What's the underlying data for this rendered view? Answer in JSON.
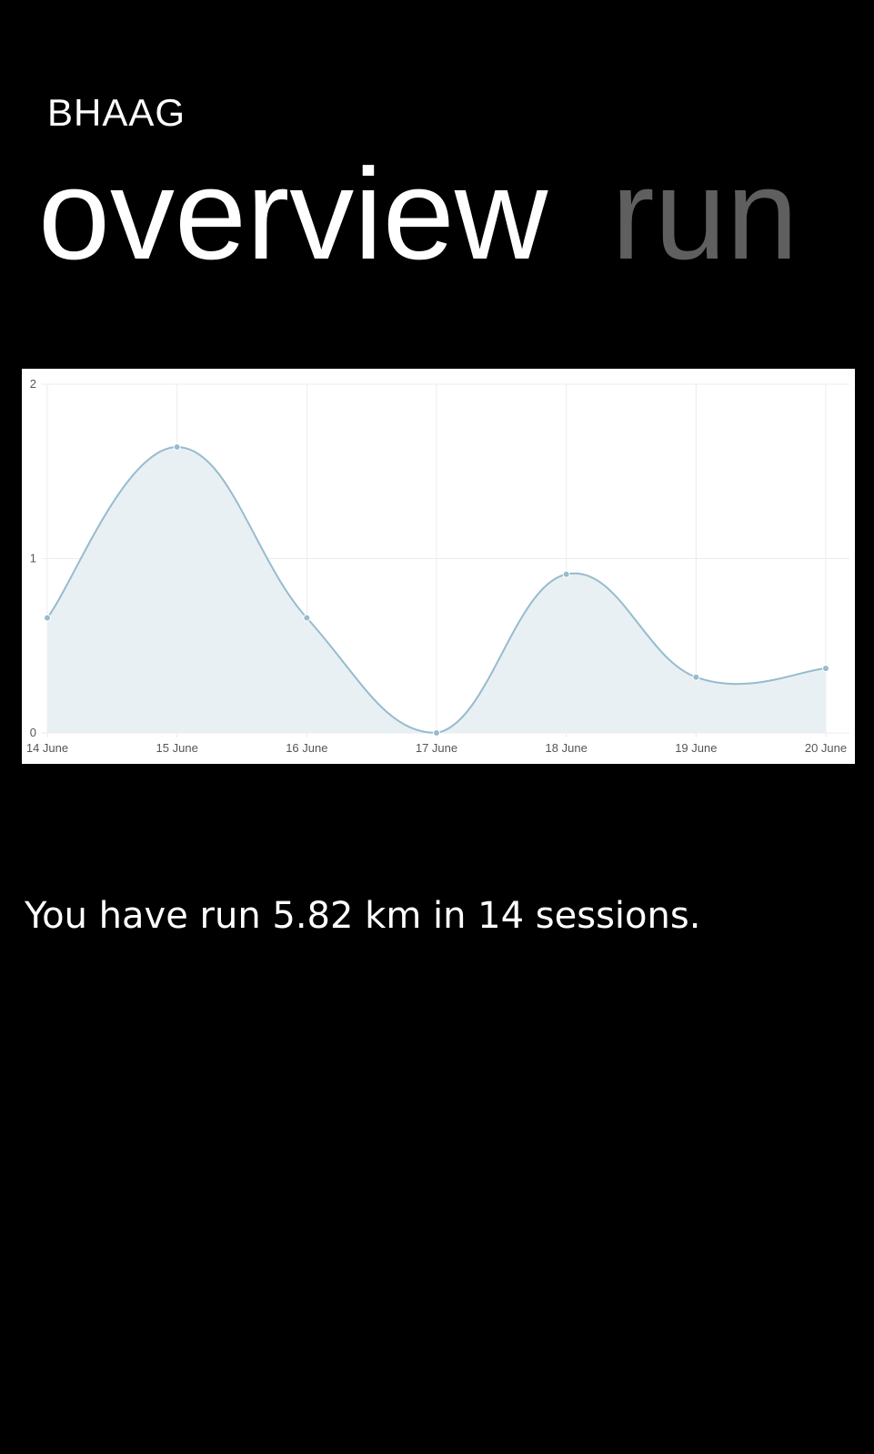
{
  "app": {
    "title": "BHAAG"
  },
  "pivot": {
    "tabs": [
      {
        "label": "overview",
        "active": true
      },
      {
        "label": "run",
        "active": false
      }
    ]
  },
  "chart_data": {
    "type": "area",
    "x": [
      "14 June",
      "15 June",
      "16 June",
      "17 June",
      "18 June",
      "19 June",
      "20 June"
    ],
    "series": [
      {
        "values": [
          0.66,
          1.64,
          0.66,
          0.0,
          0.91,
          0.32,
          0.37
        ]
      }
    ],
    "y_ticks": [
      "0",
      "1",
      "2"
    ],
    "ylim": [
      0,
      2
    ],
    "grid": true,
    "smooth": true,
    "colors": {
      "line": "#97bbcd",
      "fill": "#e8f0f4",
      "point": "#97bbcd",
      "grid": "#ececec",
      "tick_text": "#555555"
    }
  },
  "summary": {
    "text": "You have run 5.82 km in 14 sessions."
  }
}
